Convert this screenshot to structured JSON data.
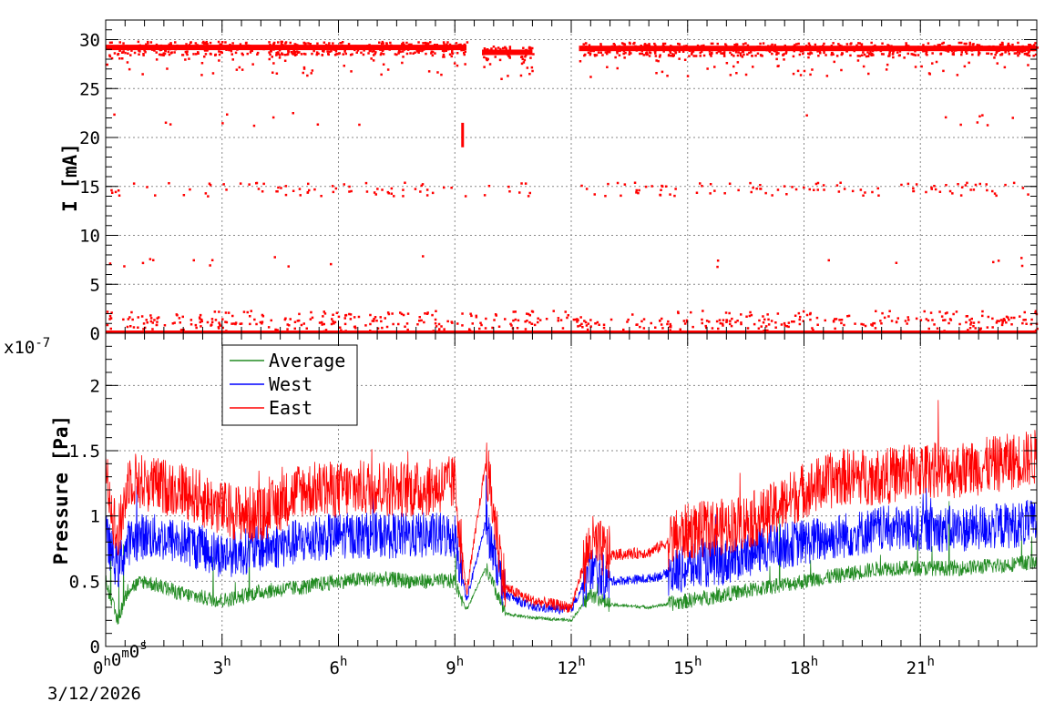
{
  "chart_data": [
    {
      "type": "scatter",
      "panel": "current",
      "ylabel": "I [mA]",
      "ylim": [
        0,
        32
      ],
      "xlim_hours": [
        0,
        24
      ],
      "grid": true,
      "yticks": [
        0,
        5,
        10,
        15,
        20,
        25,
        30
      ],
      "ytick_labels": [
        "0",
        "5",
        "10",
        "15",
        "20",
        "25",
        "30"
      ],
      "series": [
        {
          "color": "#ff0000",
          "segments": [
            {
              "x": [
                0.0,
                9.3
              ],
              "level": 29.2
            },
            {
              "x": [
                9.7,
                11.0
              ],
              "level": 28.7
            },
            {
              "x": [
                12.2,
                24.0
              ],
              "level": 29.1
            }
          ],
          "bands": [
            0.2,
            1.0,
            7.5,
            14.8,
            22.0
          ],
          "drop_x": 9.2
        }
      ]
    },
    {
      "type": "line",
      "panel": "pressure",
      "ylabel": "Pressure [Pa]",
      "yscale_label": "x10",
      "yscale_exponent": "-7",
      "ylim": [
        0,
        2.4
      ],
      "xlim_hours": [
        0,
        24
      ],
      "grid": true,
      "yticks": [
        0,
        0.5,
        1,
        1.5,
        2
      ],
      "ytick_labels": [
        "0",
        "0.5",
        "1",
        "1.5",
        "2"
      ],
      "legend_position": "top-left",
      "series": [
        {
          "name": "Average",
          "color": "#228b22",
          "x": [
            0,
            0.3,
            0.6,
            1,
            2,
            3,
            4,
            5,
            6,
            7,
            8,
            9,
            9.3,
            9.8,
            10.3,
            11,
            12,
            12.5,
            13,
            14,
            15,
            16,
            17,
            18,
            19,
            20,
            21,
            22,
            23,
            24
          ],
          "values": [
            0.5,
            0.2,
            0.45,
            0.5,
            0.4,
            0.35,
            0.42,
            0.45,
            0.5,
            0.52,
            0.5,
            0.5,
            0.28,
            0.6,
            0.25,
            0.22,
            0.2,
            0.4,
            0.32,
            0.3,
            0.35,
            0.4,
            0.45,
            0.5,
            0.55,
            0.6,
            0.6,
            0.6,
            0.62,
            0.65
          ]
        },
        {
          "name": "West",
          "color": "#0000ff",
          "x": [
            0,
            0.3,
            0.6,
            1,
            2,
            3,
            4,
            5,
            6,
            7,
            8,
            9,
            9.3,
            9.8,
            10.3,
            11,
            12,
            12.5,
            13,
            14,
            15,
            16,
            17,
            18,
            19,
            20,
            21,
            22,
            23,
            24
          ],
          "values": [
            0.85,
            0.6,
            0.8,
            0.85,
            0.8,
            0.7,
            0.75,
            0.8,
            0.85,
            0.85,
            0.85,
            0.85,
            0.35,
            0.95,
            0.4,
            0.3,
            0.28,
            0.6,
            0.5,
            0.52,
            0.6,
            0.65,
            0.75,
            0.8,
            0.85,
            0.9,
            0.9,
            0.9,
            0.92,
            0.95
          ]
        },
        {
          "name": "East",
          "color": "#ff0000",
          "x": [
            0,
            0.3,
            0.6,
            1,
            2,
            3,
            4,
            5,
            6,
            7,
            8,
            9,
            9.3,
            9.8,
            10.3,
            11,
            12,
            12.5,
            13,
            14,
            15,
            16,
            17,
            18,
            19,
            20,
            21,
            22,
            23,
            24
          ],
          "values": [
            1.4,
            0.8,
            1.3,
            1.25,
            1.2,
            1.05,
            1.0,
            1.2,
            1.2,
            1.22,
            1.2,
            1.25,
            0.4,
            1.42,
            0.45,
            0.35,
            0.3,
            0.8,
            0.7,
            0.72,
            0.88,
            0.92,
            1.0,
            1.2,
            1.3,
            1.3,
            1.35,
            1.35,
            1.4,
            1.45
          ]
        }
      ]
    }
  ],
  "x_axis": {
    "tick_labels": [
      {
        "hours": 0,
        "value": "0",
        "unit": "h",
        "extra": [
          [
            "0",
            "m"
          ],
          [
            "0",
            "s"
          ]
        ]
      },
      {
        "hours": 3,
        "value": "3",
        "unit": "h"
      },
      {
        "hours": 6,
        "value": "6",
        "unit": "h"
      },
      {
        "hours": 9,
        "value": "9",
        "unit": "h"
      },
      {
        "hours": 12,
        "value": "12",
        "unit": "h"
      },
      {
        "hours": 15,
        "value": "15",
        "unit": "h"
      },
      {
        "hours": 18,
        "value": "18",
        "unit": "h"
      },
      {
        "hours": 21,
        "value": "21",
        "unit": "h"
      }
    ],
    "date": "3/12/2026"
  },
  "legend": {
    "entries": [
      {
        "label": "Average",
        "color": "#228b22"
      },
      {
        "label": "West",
        "color": "#0000ff"
      },
      {
        "label": "East",
        "color": "#ff0000"
      }
    ]
  }
}
